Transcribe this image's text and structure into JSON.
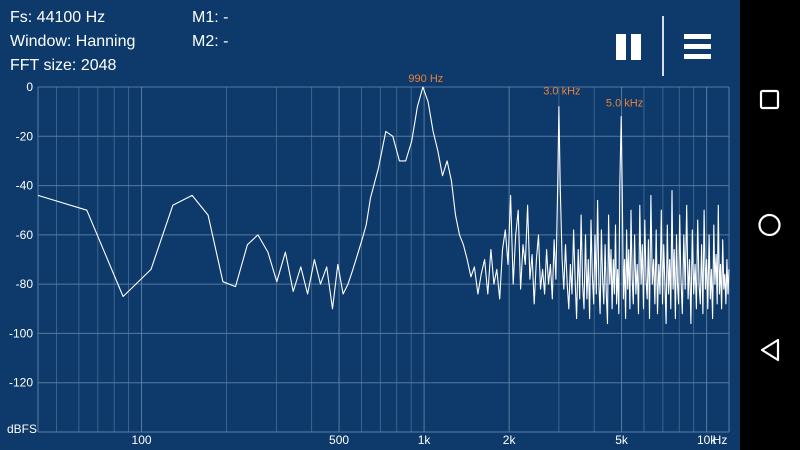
{
  "info": {
    "fs": "Fs: 44100 Hz",
    "window": "Window: Hanning",
    "fft": "FFT size: 2048",
    "m1": "M1: -",
    "m2": "M2: -"
  },
  "toolbar": {
    "pause_icon": "pause-icon",
    "menu_icon": "hamburger-menu-icon"
  },
  "navbar": {
    "recents_icon": "square-icon",
    "home_icon": "circle-icon",
    "back_icon": "back-triangle-icon"
  },
  "colors": {
    "background": "#0d3a6a",
    "grid": "#5d7fa6",
    "trace": "#ffffff",
    "peak_label": "#e8833a",
    "axis_text": "#ffffff",
    "navbar": "#000000"
  },
  "chart_data": {
    "type": "line",
    "title": "",
    "xlabel": "Hz",
    "ylabel": "dBFS",
    "x_scale": "log",
    "xlim": [
      43,
      12000
    ],
    "ylim": [
      -140,
      0
    ],
    "grid": true,
    "y_ticks": [
      "0",
      "-20",
      "-40",
      "-60",
      "-80",
      "-100",
      "-120"
    ],
    "y_tick_values": [
      0,
      -20,
      -40,
      -60,
      -80,
      -100,
      -120
    ],
    "x_ticks": [
      "100",
      "500",
      "1k",
      "2k",
      "5k",
      "10k"
    ],
    "x_tick_values": [
      100,
      500,
      1000,
      2000,
      5000,
      10000
    ],
    "annotations": [
      {
        "text": "990 Hz",
        "x": 990,
        "y": 0
      },
      {
        "text": "3.0  kHz",
        "x": 3000,
        "y": -5
      },
      {
        "text": "5.0  kHz",
        "x": 5000,
        "y": -10
      }
    ],
    "series": [
      {
        "values": [
          [
            43,
            -44
          ],
          [
            64,
            -50
          ],
          [
            86,
            -85
          ],
          [
            108,
            -74
          ],
          [
            129,
            -48
          ],
          [
            151,
            -44
          ],
          [
            172,
            -52
          ],
          [
            194,
            -79
          ],
          [
            215,
            -81
          ],
          [
            237,
            -64
          ],
          [
            258,
            -60
          ],
          [
            280,
            -67
          ],
          [
            301,
            -79
          ],
          [
            323,
            -67
          ],
          [
            344,
            -83
          ],
          [
            366,
            -73
          ],
          [
            387,
            -84
          ],
          [
            409,
            -70
          ],
          [
            430,
            -80
          ],
          [
            452,
            -73
          ],
          [
            474,
            -90
          ],
          [
            495,
            -72
          ],
          [
            517,
            -84
          ],
          [
            538,
            -80
          ],
          [
            560,
            -74
          ],
          [
            581,
            -68
          ],
          [
            603,
            -62
          ],
          [
            624,
            -56
          ],
          [
            646,
            -45
          ],
          [
            689,
            -33
          ],
          [
            732,
            -18
          ],
          [
            775,
            -20
          ],
          [
            818,
            -30
          ],
          [
            861,
            -30
          ],
          [
            904,
            -22
          ],
          [
            947,
            -8
          ],
          [
            990,
            0
          ],
          [
            1033,
            -6
          ],
          [
            1076,
            -18
          ],
          [
            1119,
            -26
          ],
          [
            1162,
            -36
          ],
          [
            1206,
            -30
          ],
          [
            1249,
            -38
          ],
          [
            1292,
            -52
          ],
          [
            1335,
            -60
          ],
          [
            1378,
            -64
          ],
          [
            1421,
            -70
          ],
          [
            1464,
            -77
          ],
          [
            1507,
            -73
          ],
          [
            1550,
            -84
          ],
          [
            1593,
            -76
          ],
          [
            1637,
            -70
          ],
          [
            1680,
            -84
          ],
          [
            1723,
            -66
          ],
          [
            1766,
            -80
          ],
          [
            1809,
            -74
          ],
          [
            1852,
            -86
          ],
          [
            1895,
            -66
          ],
          [
            1938,
            -58
          ],
          [
            1981,
            -72
          ],
          [
            2024,
            -44
          ],
          [
            2067,
            -80
          ],
          [
            2110,
            -60
          ],
          [
            2153,
            -50
          ],
          [
            2196,
            -82
          ],
          [
            2239,
            -64
          ],
          [
            2282,
            -72
          ],
          [
            2325,
            -48
          ],
          [
            2368,
            -78
          ],
          [
            2411,
            -68
          ],
          [
            2454,
            -88
          ],
          [
            2497,
            -70
          ],
          [
            2540,
            -60
          ],
          [
            2583,
            -82
          ],
          [
            2626,
            -74
          ],
          [
            2670,
            -84
          ],
          [
            2713,
            -66
          ],
          [
            2756,
            -80
          ],
          [
            2799,
            -72
          ],
          [
            2842,
            -86
          ],
          [
            2885,
            -62
          ],
          [
            2928,
            -78
          ],
          [
            2971,
            -40
          ],
          [
            3000,
            -8
          ],
          [
            3032,
            -40
          ],
          [
            3079,
            -70
          ],
          [
            3123,
            -82
          ],
          [
            3166,
            -64
          ],
          [
            3209,
            -80
          ],
          [
            3252,
            -90
          ],
          [
            3295,
            -72
          ],
          [
            3338,
            -84
          ],
          [
            3381,
            -58
          ],
          [
            3424,
            -78
          ],
          [
            3467,
            -94
          ],
          [
            3510,
            -66
          ],
          [
            3553,
            -86
          ],
          [
            3596,
            -52
          ],
          [
            3639,
            -80
          ],
          [
            3682,
            -90
          ],
          [
            3725,
            -60
          ],
          [
            3768,
            -86
          ],
          [
            3811,
            -70
          ],
          [
            3854,
            -94
          ],
          [
            3897,
            -54
          ],
          [
            3940,
            -76
          ],
          [
            3983,
            -88
          ],
          [
            4026,
            -60
          ],
          [
            4069,
            -84
          ],
          [
            4112,
            -46
          ],
          [
            4155,
            -80
          ],
          [
            4198,
            -92
          ],
          [
            4241,
            -58
          ],
          [
            4284,
            -78
          ],
          [
            4327,
            -88
          ],
          [
            4371,
            -64
          ],
          [
            4414,
            -84
          ],
          [
            4457,
            -96
          ],
          [
            4500,
            -52
          ],
          [
            4543,
            -80
          ],
          [
            4586,
            -66
          ],
          [
            4629,
            -90
          ],
          [
            4672,
            -70
          ],
          [
            4715,
            -84
          ],
          [
            4758,
            -56
          ],
          [
            4801,
            -88
          ],
          [
            4844,
            -74
          ],
          [
            4887,
            -92
          ],
          [
            4930,
            -40
          ],
          [
            4985,
            -12
          ],
          [
            5030,
            -44
          ],
          [
            5075,
            -86
          ],
          [
            5120,
            -70
          ],
          [
            5165,
            -94
          ],
          [
            5210,
            -58
          ],
          [
            5255,
            -82
          ],
          [
            5300,
            -66
          ],
          [
            5350,
            -90
          ],
          [
            5400,
            -50
          ],
          [
            5450,
            -78
          ],
          [
            5500,
            -88
          ],
          [
            5560,
            -60
          ],
          [
            5620,
            -84
          ],
          [
            5680,
            -72
          ],
          [
            5740,
            -92
          ],
          [
            5800,
            -48
          ],
          [
            5860,
            -80
          ],
          [
            5920,
            -64
          ],
          [
            5980,
            -90
          ],
          [
            6040,
            -54
          ],
          [
            6100,
            -78
          ],
          [
            6160,
            -86
          ],
          [
            6220,
            -62
          ],
          [
            6280,
            -94
          ],
          [
            6350,
            -44
          ],
          [
            6420,
            -80
          ],
          [
            6490,
            -70
          ],
          [
            6560,
            -88
          ],
          [
            6630,
            -58
          ],
          [
            6700,
            -92
          ],
          [
            6770,
            -72
          ],
          [
            6840,
            -84
          ],
          [
            6910,
            -50
          ],
          [
            6980,
            -88
          ],
          [
            7050,
            -64
          ],
          [
            7120,
            -80
          ],
          [
            7190,
            -96
          ],
          [
            7260,
            -56
          ],
          [
            7330,
            -84
          ],
          [
            7400,
            -70
          ],
          [
            7470,
            -90
          ],
          [
            7540,
            -42
          ],
          [
            7610,
            -82
          ],
          [
            7680,
            -66
          ],
          [
            7750,
            -94
          ],
          [
            7820,
            -60
          ],
          [
            7890,
            -80
          ],
          [
            7960,
            -88
          ],
          [
            8030,
            -52
          ],
          [
            8100,
            -76
          ],
          [
            8200,
            -92
          ],
          [
            8300,
            -60
          ],
          [
            8400,
            -82
          ],
          [
            8500,
            -48
          ],
          [
            8600,
            -86
          ],
          [
            8700,
            -70
          ],
          [
            8800,
            -96
          ],
          [
            8900,
            -58
          ],
          [
            9000,
            -84
          ],
          [
            9100,
            -72
          ],
          [
            9200,
            -90
          ],
          [
            9300,
            -54
          ],
          [
            9400,
            -80
          ],
          [
            9500,
            -88
          ],
          [
            9600,
            -64
          ],
          [
            9700,
            -92
          ],
          [
            9800,
            -50
          ],
          [
            9900,
            -82
          ],
          [
            10000,
            -70
          ],
          [
            10100,
            -90
          ],
          [
            10200,
            -60
          ],
          [
            10300,
            -86
          ],
          [
            10400,
            -74
          ],
          [
            10500,
            -94
          ],
          [
            10600,
            -56
          ],
          [
            10700,
            -80
          ],
          [
            10800,
            -68
          ],
          [
            10900,
            -88
          ],
          [
            11000,
            -48
          ],
          [
            11100,
            -84
          ],
          [
            11200,
            -72
          ],
          [
            11300,
            -90
          ],
          [
            11400,
            -62
          ],
          [
            11500,
            -82
          ],
          [
            11600,
            -76
          ],
          [
            11700,
            -88
          ],
          [
            11800,
            -70
          ],
          [
            11900,
            -84
          ],
          [
            12000,
            -74
          ]
        ]
      }
    ]
  }
}
